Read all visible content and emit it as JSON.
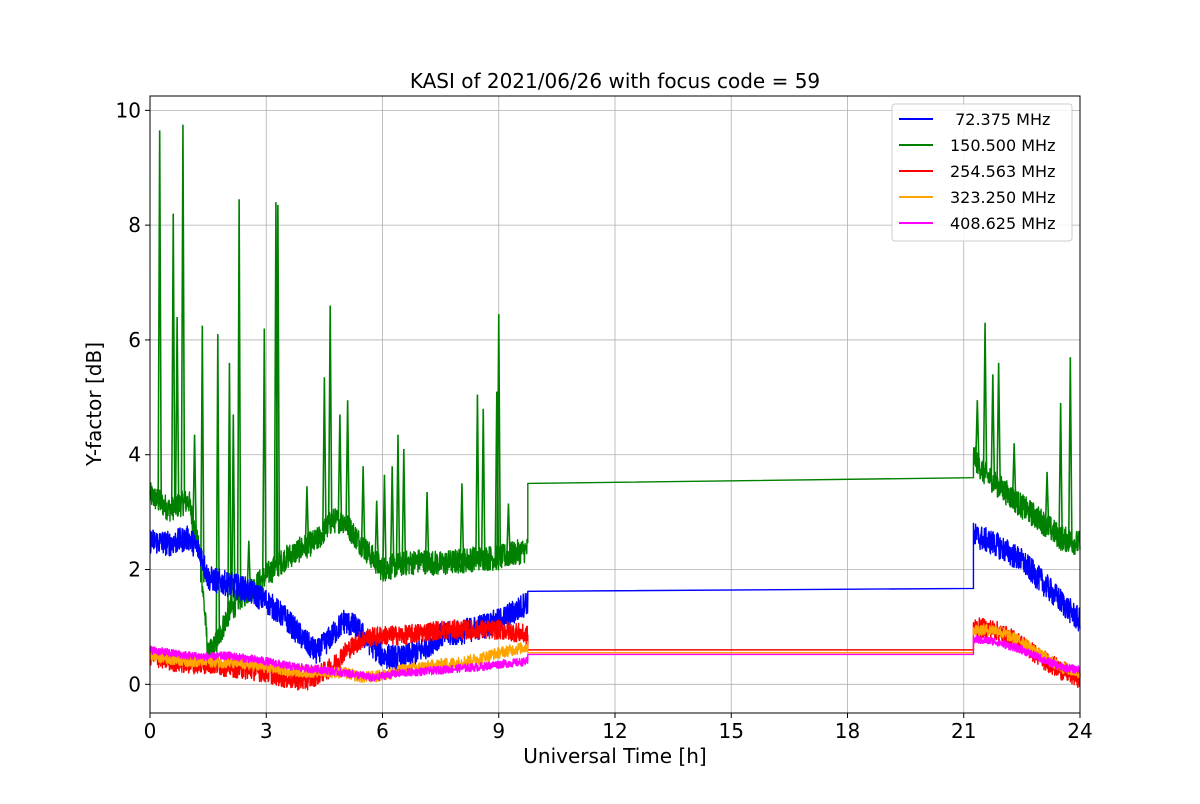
{
  "chart_data": {
    "type": "line",
    "title": "KASI of 2021/06/26 with focus code = 59",
    "xlabel": "Universal Time [h]",
    "ylabel": "Y-factor [dB]",
    "xlim": [
      0,
      24
    ],
    "ylim": [
      -0.5,
      10.25
    ],
    "x_ticks": [
      0,
      3,
      6,
      9,
      12,
      15,
      18,
      21,
      24
    ],
    "x_tick_labels": [
      "0",
      "3",
      "6",
      "9",
      "12",
      "15",
      "18",
      "21",
      "24"
    ],
    "y_ticks": [
      0,
      2,
      4,
      6,
      8,
      10
    ],
    "y_tick_labels": [
      "0",
      "2",
      "4",
      "6",
      "8",
      "10"
    ],
    "grid": true,
    "legend_position": "top-right",
    "data_gap_hours": [
      9.75,
      21.25
    ],
    "series": [
      {
        "name": " 72.375 MHz",
        "color": "#0000ff",
        "points": [
          [
            0,
            2.5
          ],
          [
            0.5,
            2.45
          ],
          [
            1,
            2.55
          ],
          [
            1.3,
            2.3
          ],
          [
            1.5,
            1.85
          ],
          [
            2,
            1.75
          ],
          [
            2.5,
            1.65
          ],
          [
            3,
            1.45
          ],
          [
            3.5,
            1.15
          ],
          [
            4,
            0.75
          ],
          [
            4.3,
            0.55
          ],
          [
            4.7,
            0.85
          ],
          [
            5,
            1.1
          ],
          [
            5.3,
            1.0
          ],
          [
            5.7,
            0.7
          ],
          [
            6,
            0.5
          ],
          [
            6.5,
            0.45
          ],
          [
            7,
            0.6
          ],
          [
            7.5,
            0.85
          ],
          [
            8,
            0.9
          ],
          [
            8.5,
            1.0
          ],
          [
            9,
            1.1
          ],
          [
            9.5,
            1.3
          ],
          [
            9.75,
            1.45
          ],
          [
            9.75,
            1.62
          ],
          [
            21.25,
            1.67
          ],
          [
            21.25,
            2.6
          ],
          [
            21.8,
            2.45
          ],
          [
            22.5,
            2.15
          ],
          [
            23,
            1.8
          ],
          [
            23.5,
            1.45
          ],
          [
            24,
            1.1
          ]
        ]
      },
      {
        "name": "150.500 MHz",
        "color": "#008000",
        "points": [
          [
            0,
            3.3
          ],
          [
            0.5,
            3.05
          ],
          [
            1,
            3.2
          ],
          [
            1.3,
            2.2
          ],
          [
            1.5,
            0.5
          ],
          [
            1.7,
            0.7
          ],
          [
            2,
            1.2
          ],
          [
            2.3,
            1.5
          ],
          [
            2.7,
            1.7
          ],
          [
            3,
            1.9
          ],
          [
            3.5,
            2.2
          ],
          [
            4,
            2.4
          ],
          [
            4.3,
            2.5
          ],
          [
            4.7,
            2.85
          ],
          [
            5,
            2.85
          ],
          [
            5.5,
            2.4
          ],
          [
            6,
            2.0
          ],
          [
            6.5,
            2.1
          ],
          [
            7,
            2.15
          ],
          [
            7.5,
            2.1
          ],
          [
            8,
            2.15
          ],
          [
            8.5,
            2.2
          ],
          [
            9,
            2.2
          ],
          [
            9.5,
            2.3
          ],
          [
            9.75,
            2.35
          ],
          [
            9.75,
            3.5
          ],
          [
            21.25,
            3.6
          ],
          [
            21.25,
            4.0
          ],
          [
            21.5,
            3.7
          ],
          [
            22,
            3.4
          ],
          [
            22.5,
            3.1
          ],
          [
            23,
            2.85
          ],
          [
            23.5,
            2.55
          ],
          [
            24,
            2.45
          ]
        ],
        "spikes": [
          [
            0.25,
            9.65
          ],
          [
            0.6,
            8.2
          ],
          [
            0.7,
            6.4
          ],
          [
            0.85,
            9.75
          ],
          [
            1.15,
            4.35
          ],
          [
            1.35,
            6.25
          ],
          [
            1.75,
            6.1
          ],
          [
            2.05,
            5.6
          ],
          [
            2.15,
            4.7
          ],
          [
            2.3,
            8.45
          ],
          [
            2.55,
            2.5
          ],
          [
            2.95,
            6.2
          ],
          [
            3.25,
            8.4
          ],
          [
            3.3,
            8.35
          ],
          [
            4.05,
            3.45
          ],
          [
            4.5,
            5.35
          ],
          [
            4.65,
            6.6
          ],
          [
            4.9,
            4.7
          ],
          [
            5.1,
            4.95
          ],
          [
            5.5,
            3.8
          ],
          [
            5.85,
            3.2
          ],
          [
            6.05,
            3.65
          ],
          [
            6.25,
            3.8
          ],
          [
            6.4,
            4.35
          ],
          [
            6.55,
            4.1
          ],
          [
            7.15,
            3.35
          ],
          [
            8.05,
            3.5
          ],
          [
            8.45,
            5.05
          ],
          [
            8.6,
            4.8
          ],
          [
            8.95,
            5.1
          ],
          [
            9.0,
            6.45
          ],
          [
            9.25,
            3.15
          ],
          [
            21.35,
            4.95
          ],
          [
            21.55,
            6.3
          ],
          [
            21.75,
            5.4
          ],
          [
            21.9,
            5.6
          ],
          [
            22.3,
            4.2
          ],
          [
            23.15,
            3.7
          ],
          [
            23.5,
            4.9
          ],
          [
            23.75,
            5.7
          ]
        ]
      },
      {
        "name": "254.563 MHz",
        "color": "#ff0000",
        "points": [
          [
            0,
            0.5
          ],
          [
            0.5,
            0.4
          ],
          [
            1,
            0.35
          ],
          [
            1.5,
            0.35
          ],
          [
            2,
            0.3
          ],
          [
            2.5,
            0.25
          ],
          [
            3,
            0.2
          ],
          [
            3.5,
            0.1
          ],
          [
            4,
            0.05
          ],
          [
            4.3,
            0.15
          ],
          [
            4.7,
            0.3
          ],
          [
            5,
            0.55
          ],
          [
            5.5,
            0.8
          ],
          [
            6,
            0.85
          ],
          [
            6.5,
            0.85
          ],
          [
            7,
            0.9
          ],
          [
            7.5,
            0.95
          ],
          [
            8,
            0.95
          ],
          [
            8.5,
            0.95
          ],
          [
            9,
            0.95
          ],
          [
            9.5,
            0.9
          ],
          [
            9.75,
            0.85
          ],
          [
            9.75,
            0.6
          ],
          [
            21.25,
            0.6
          ],
          [
            21.25,
            1.0
          ],
          [
            21.8,
            0.95
          ],
          [
            22.5,
            0.7
          ],
          [
            23,
            0.45
          ],
          [
            23.5,
            0.25
          ],
          [
            24,
            0.1
          ]
        ]
      },
      {
        "name": "323.250 MHz",
        "color": "#ffa500",
        "points": [
          [
            0,
            0.5
          ],
          [
            0.5,
            0.45
          ],
          [
            1,
            0.4
          ],
          [
            1.5,
            0.4
          ],
          [
            2,
            0.38
          ],
          [
            2.5,
            0.35
          ],
          [
            3,
            0.3
          ],
          [
            3.5,
            0.25
          ],
          [
            4,
            0.22
          ],
          [
            4.5,
            0.22
          ],
          [
            5,
            0.2
          ],
          [
            5.5,
            0.12
          ],
          [
            6,
            0.15
          ],
          [
            6.5,
            0.25
          ],
          [
            7,
            0.3
          ],
          [
            7.5,
            0.35
          ],
          [
            8,
            0.38
          ],
          [
            8.5,
            0.45
          ],
          [
            9,
            0.55
          ],
          [
            9.5,
            0.62
          ],
          [
            9.75,
            0.65
          ],
          [
            9.75,
            0.55
          ],
          [
            21.25,
            0.55
          ],
          [
            21.25,
            0.95
          ],
          [
            21.8,
            0.95
          ],
          [
            22.5,
            0.75
          ],
          [
            23,
            0.5
          ],
          [
            23.5,
            0.3
          ],
          [
            24,
            0.2
          ]
        ]
      },
      {
        "name": "408.625 MHz",
        "color": "#ff00ff",
        "points": [
          [
            0,
            0.6
          ],
          [
            0.5,
            0.55
          ],
          [
            1,
            0.5
          ],
          [
            1.5,
            0.48
          ],
          [
            2,
            0.5
          ],
          [
            2.5,
            0.45
          ],
          [
            3,
            0.4
          ],
          [
            3.5,
            0.33
          ],
          [
            4,
            0.28
          ],
          [
            4.5,
            0.25
          ],
          [
            5,
            0.2
          ],
          [
            5.5,
            0.15
          ],
          [
            5.8,
            0.1
          ],
          [
            6,
            0.15
          ],
          [
            6.5,
            0.2
          ],
          [
            7,
            0.22
          ],
          [
            7.5,
            0.25
          ],
          [
            8,
            0.28
          ],
          [
            8.5,
            0.3
          ],
          [
            9,
            0.35
          ],
          [
            9.5,
            0.38
          ],
          [
            9.75,
            0.4
          ],
          [
            9.75,
            0.52
          ],
          [
            21.25,
            0.52
          ],
          [
            21.25,
            0.78
          ],
          [
            21.8,
            0.75
          ],
          [
            22.5,
            0.6
          ],
          [
            23,
            0.45
          ],
          [
            23.5,
            0.3
          ],
          [
            24,
            0.25
          ]
        ]
      }
    ]
  }
}
